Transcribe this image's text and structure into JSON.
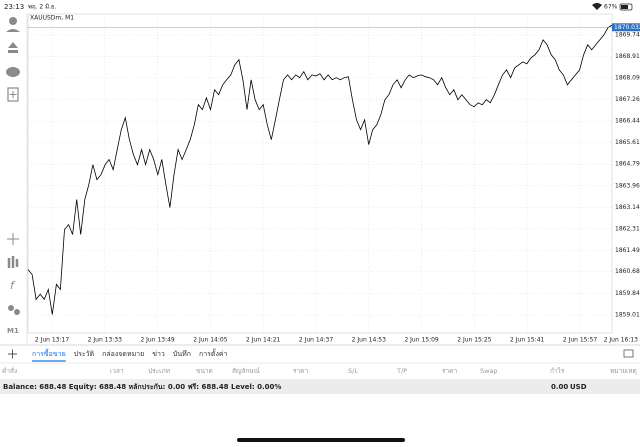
{
  "status_bar": {
    "time": "23:13",
    "date": "พฤ. 2 มิ.ย.",
    "battery": "67%"
  },
  "toolbar": {
    "timeframe": "M1"
  },
  "chart_data": {
    "type": "line",
    "title": "XAUUSDm, M1",
    "color": "#000000",
    "grid": true,
    "ylim": [
      1858.33,
      1870.54
    ],
    "yticks": [
      {
        "value": 1869.74,
        "label": "1869.740"
      },
      {
        "value": 1868.915,
        "label": "1868.915"
      },
      {
        "value": 1868.09,
        "label": "1868.090"
      },
      {
        "value": 1867.265,
        "label": "1867.265"
      },
      {
        "value": 1866.44,
        "label": "1866.440"
      },
      1865.615,
      {
        "value": 1864.79,
        "label": "1864.790"
      },
      1863.965,
      {
        "value": 1863.14,
        "label": "1863.140"
      },
      1862.315,
      {
        "value": 1861.49,
        "label": "1861.490"
      },
      1860.685,
      {
        "value": 1859.84,
        "label": "1859.840"
      },
      1859.015
    ],
    "current_price": {
      "value": 1870.032,
      "label": "1870.032"
    },
    "xtick_labels": [
      "2 Jun 13:17",
      "2 Jun 13:33",
      "2 Jun 13:49",
      "2 Jun 14:05",
      "2 Jun 14:21",
      "2 Jun 14:37",
      "2 Jun 14:53",
      "2 Jun 15:09",
      "2 Jun 15:25",
      "2 Jun 15:41",
      "2 Jun 15:57",
      "2 Jun 16:13"
    ],
    "values": [
      1860.76,
      1860.57,
      1859.62,
      1859.81,
      1859.62,
      1860.0,
      1859.04,
      1860.19,
      1860.0,
      1862.29,
      1862.48,
      1862.1,
      1863.44,
      1862.1,
      1863.44,
      1864.01,
      1864.77,
      1864.2,
      1864.39,
      1864.77,
      1864.97,
      1864.58,
      1865.35,
      1866.11,
      1866.57,
      1865.73,
      1865.16,
      1864.77,
      1865.35,
      1864.77,
      1865.35,
      1864.97,
      1864.39,
      1864.97,
      1864.01,
      1863.13,
      1864.39,
      1865.35,
      1864.97,
      1865.35,
      1865.73,
      1866.3,
      1867.07,
      1866.88,
      1867.33,
      1866.88,
      1867.64,
      1867.45,
      1867.83,
      1868.02,
      1868.21,
      1868.59,
      1868.79,
      1868.02,
      1866.88,
      1868.02,
      1867.26,
      1866.88,
      1867.07,
      1866.3,
      1865.73,
      1866.49,
      1867.26,
      1868.02,
      1868.21,
      1868.02,
      1868.21,
      1868.1,
      1868.33,
      1868.02,
      1868.21,
      1868.17,
      1868.25,
      1868.02,
      1868.21,
      1868.02,
      1868.1,
      1868.02,
      1868.1,
      1868.14,
      1867.26,
      1866.49,
      1866.11,
      1866.49,
      1865.54,
      1866.11,
      1866.3,
      1866.68,
      1867.26,
      1867.45,
      1867.83,
      1868.02,
      1867.72,
      1868.02,
      1868.21,
      1868.1,
      1868.17,
      1868.21,
      1868.14,
      1868.1,
      1868.02,
      1867.83,
      1868.1,
      1867.72,
      1867.45,
      1867.64,
      1867.26,
      1867.45,
      1867.26,
      1867.07,
      1866.99,
      1867.14,
      1867.07,
      1867.26,
      1867.14,
      1867.45,
      1867.83,
      1868.21,
      1868.4,
      1868.1,
      1868.48,
      1868.59,
      1868.71,
      1868.63,
      1868.86,
      1868.98,
      1869.17,
      1869.55,
      1869.36,
      1868.98,
      1868.79,
      1868.4,
      1868.21,
      1867.83,
      1868.02,
      1868.21,
      1868.4,
      1868.98,
      1869.36,
      1869.17,
      1869.36,
      1869.55,
      1869.74,
      1870.01,
      1870.12
    ]
  },
  "tabs": [
    "การซื้อขาย",
    "ประวัติ",
    "กล่องจดหมาย",
    "ข่าว",
    "บันทึก",
    "การตั้งค่า"
  ],
  "columns": [
    "คำสั่ง",
    "เวลา",
    "ประเภท",
    "ขนาด",
    "สัญลักษณ์",
    "ราคา",
    "S/L",
    "T/P",
    "ราคา",
    "Swap",
    "กำไร",
    "หมายเหตุ"
  ],
  "account": {
    "summary": "Balance: 688.48 Equity: 688.48 หลักประกัน: 0.00 ฟรี: 688.48 Level: 0.00%",
    "profit": "0.00",
    "currency": "USD"
  }
}
